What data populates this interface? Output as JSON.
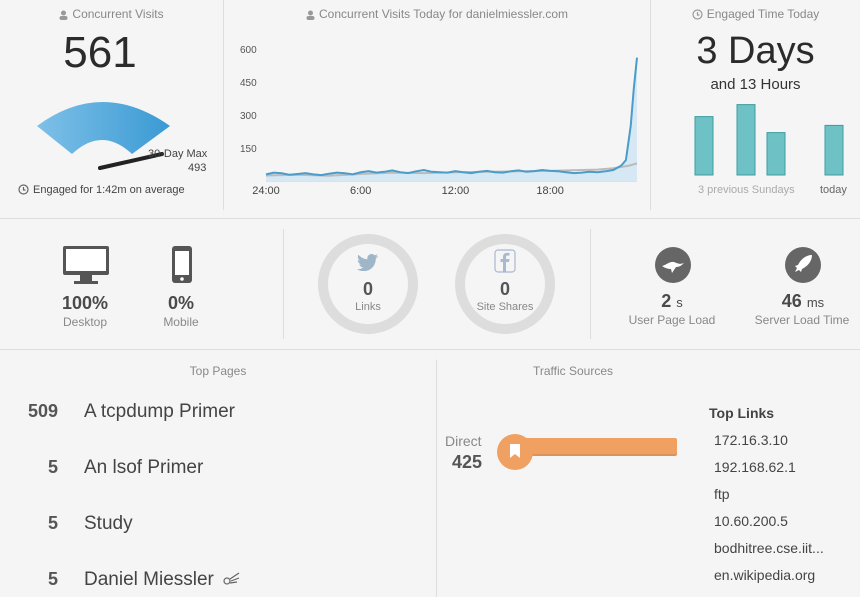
{
  "concurrent": {
    "caption": "Concurrent Visits",
    "value": "561",
    "max_label": "30-Day Max",
    "max_value": "493",
    "engaged_note": "Engaged for 1:42m on average",
    "gauge_fraction": 1.0
  },
  "today_chart": {
    "caption": "Concurrent Visits Today for danielmiessler.com"
  },
  "chart_data": {
    "type": "line",
    "title": "Concurrent Visits Today for danielmiessler.com",
    "xlabel": "",
    "ylabel": "",
    "x_ticks": [
      "24:00",
      "6:00",
      "12:00",
      "18:00"
    ],
    "y_ticks": [
      150,
      300,
      450,
      600
    ],
    "xlim": [
      0,
      23.5
    ],
    "ylim": [
      0,
      650
    ],
    "series": [
      {
        "x": [
          0,
          0.5,
          1,
          1.5,
          2,
          2.5,
          3,
          3.5,
          4,
          4.5,
          5,
          5.5,
          6,
          6.5,
          7,
          7.5,
          8,
          8.5,
          9,
          9.5,
          10,
          10.5,
          11,
          11.5,
          12,
          12.5,
          13,
          13.5,
          14,
          14.5,
          15,
          15.5,
          16,
          16.5,
          17,
          17.5,
          18,
          18.5,
          19,
          19.5,
          20,
          20.5,
          21,
          21.5,
          22,
          22.5,
          22.8,
          23.1,
          23.3,
          23.5
        ],
        "values": [
          30,
          38,
          35,
          28,
          32,
          36,
          30,
          27,
          33,
          38,
          35,
          30,
          40,
          45,
          38,
          42,
          48,
          40,
          36,
          44,
          50,
          42,
          40,
          38,
          45,
          40,
          36,
          42,
          46,
          40,
          38,
          44,
          48,
          42,
          45,
          50,
          46,
          44,
          40,
          36,
          38,
          42,
          40,
          44,
          50,
          70,
          95,
          250,
          420,
          561
        ]
      },
      {
        "x": [
          0,
          2,
          4,
          6,
          8,
          10,
          12,
          14,
          16,
          18,
          20,
          21,
          22,
          23,
          23.5
        ],
        "values": [
          25,
          28,
          24,
          32,
          38,
          36,
          40,
          42,
          44,
          46,
          50,
          52,
          58,
          70,
          80
        ]
      }
    ],
    "grid": false,
    "legend": "none"
  },
  "engaged": {
    "caption": "Engaged Time Today",
    "days": "3 Days",
    "hours": "and 13 Hours",
    "bars_prev_label": "3 previous Sundays",
    "bars_today_label": "today",
    "bars": [
      0.73,
      0.88,
      0.53,
      0.62
    ]
  },
  "devices": {
    "desktop_value": "100%",
    "desktop_label": "Desktop",
    "mobile_value": "0%",
    "mobile_label": "Mobile"
  },
  "social": {
    "links_value": "0",
    "links_label": "Links",
    "shares_value": "0",
    "shares_label": "Site Shares"
  },
  "speed": {
    "user_value": "2",
    "user_unit": "s",
    "user_label": "User Page Load",
    "server_value": "46",
    "server_unit": "ms",
    "server_label": "Server Load Time"
  },
  "top_pages": {
    "caption": "Top Pages",
    "rows": [
      {
        "count": "509",
        "title": "A tcpdump Primer"
      },
      {
        "count": "5",
        "title": "An lsof Primer"
      },
      {
        "count": "5",
        "title": "Study"
      },
      {
        "count": "5",
        "title": "Daniel Miessler"
      }
    ]
  },
  "traffic": {
    "caption": "Traffic Sources",
    "direct_label": "Direct",
    "direct_value": "425",
    "top_links_title": "Top Links",
    "links": [
      "172.16.3.10",
      "192.168.62.1",
      "ftp",
      "10.60.200.5",
      "bodhitree.cse.iit...",
      "en.wikipedia.org"
    ],
    "accent_color": "#f0a060"
  }
}
